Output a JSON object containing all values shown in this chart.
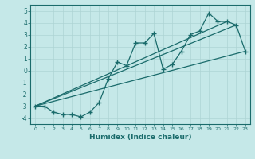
{
  "xlabel": "Humidex (Indice chaleur)",
  "xlim": [
    -0.5,
    23.5
  ],
  "ylim": [
    -4.5,
    5.5
  ],
  "bg_color": "#c5e8e8",
  "line_color": "#1a6b6b",
  "grid_color": "#aed4d4",
  "series": [
    {
      "x": [
        0,
        1,
        2,
        3,
        4,
        5,
        6,
        7,
        8,
        9,
        10,
        11,
        12,
        13,
        14,
        15,
        16,
        17,
        18,
        19,
        20,
        21,
        22,
        23
      ],
      "y": [
        -3.0,
        -3.0,
        -3.5,
        -3.7,
        -3.7,
        -3.9,
        -3.5,
        -2.7,
        -0.7,
        0.7,
        0.4,
        2.3,
        2.3,
        3.1,
        0.1,
        0.5,
        1.6,
        3.0,
        3.3,
        4.8,
        4.1,
        4.1,
        3.8,
        1.6
      ]
    },
    {
      "x": [
        0,
        21
      ],
      "y": [
        -3.0,
        4.1
      ]
    },
    {
      "x": [
        0,
        23
      ],
      "y": [
        -3.0,
        1.6
      ]
    },
    {
      "x": [
        0,
        22
      ],
      "y": [
        -3.0,
        3.8
      ]
    }
  ]
}
